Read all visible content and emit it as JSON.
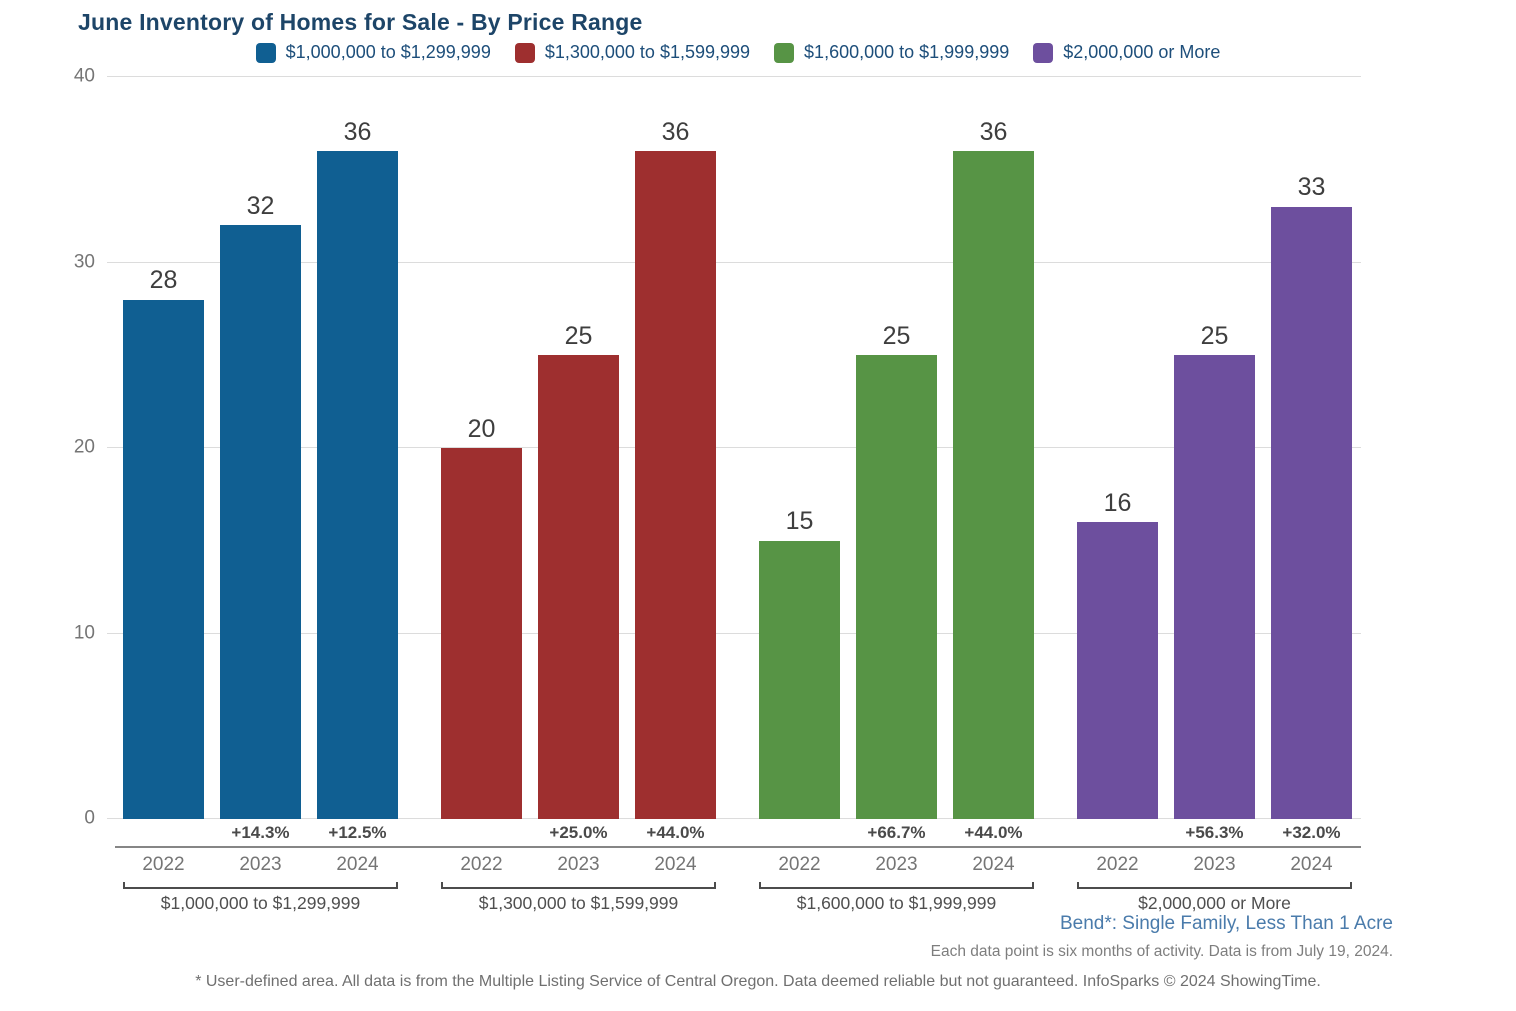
{
  "title": "June Inventory of Homes for Sale - By Price Range",
  "legend": [
    {
      "label": "$1,000,000 to $1,299,999",
      "color": "#105F92"
    },
    {
      "label": "$1,300,000 to $1,599,999",
      "color": "#9E2F2F"
    },
    {
      "label": "$1,600,000 to $1,999,999",
      "color": "#579445"
    },
    {
      "label": "$2,000,000 or More",
      "color": "#6D4F9E"
    }
  ],
  "chart_data": {
    "type": "bar",
    "title": "June Inventory of Homes for Sale - By Price Range",
    "categories": [
      "2022",
      "2023",
      "2024"
    ],
    "ylim": [
      0,
      40
    ],
    "yticks": [
      0,
      10,
      20,
      30,
      40
    ],
    "grid": true,
    "legend_position": "top",
    "series": [
      {
        "name": "$1,000,000 to $1,299,999",
        "color": "#105F92",
        "values": [
          28,
          32,
          36
        ],
        "pct_change": [
          "",
          "+14.3%",
          "+12.5%"
        ]
      },
      {
        "name": "$1,300,000 to $1,599,999",
        "color": "#9E2F2F",
        "values": [
          20,
          25,
          36
        ],
        "pct_change": [
          "",
          "+25.0%",
          "+44.0%"
        ]
      },
      {
        "name": "$1,600,000 to $1,999,999",
        "color": "#579445",
        "values": [
          15,
          25,
          36
        ],
        "pct_change": [
          "",
          "+66.7%",
          "+44.0%"
        ]
      },
      {
        "name": "$2,000,000 or More",
        "color": "#6D4F9E",
        "values": [
          16,
          25,
          33
        ],
        "pct_change": [
          "",
          "+56.3%",
          "+32.0%"
        ]
      }
    ]
  },
  "footer": {
    "area_label": "Bend*: Single Family, Less Than 1 Acre",
    "data_note": "Each data point is six months of activity. Data is from July 19, 2024.",
    "disclaimer": "* User-defined area. All data is from the Multiple Listing Service of Central Oregon. Data deemed reliable but not guaranteed. InfoSparks © 2024 ShowingTime."
  }
}
